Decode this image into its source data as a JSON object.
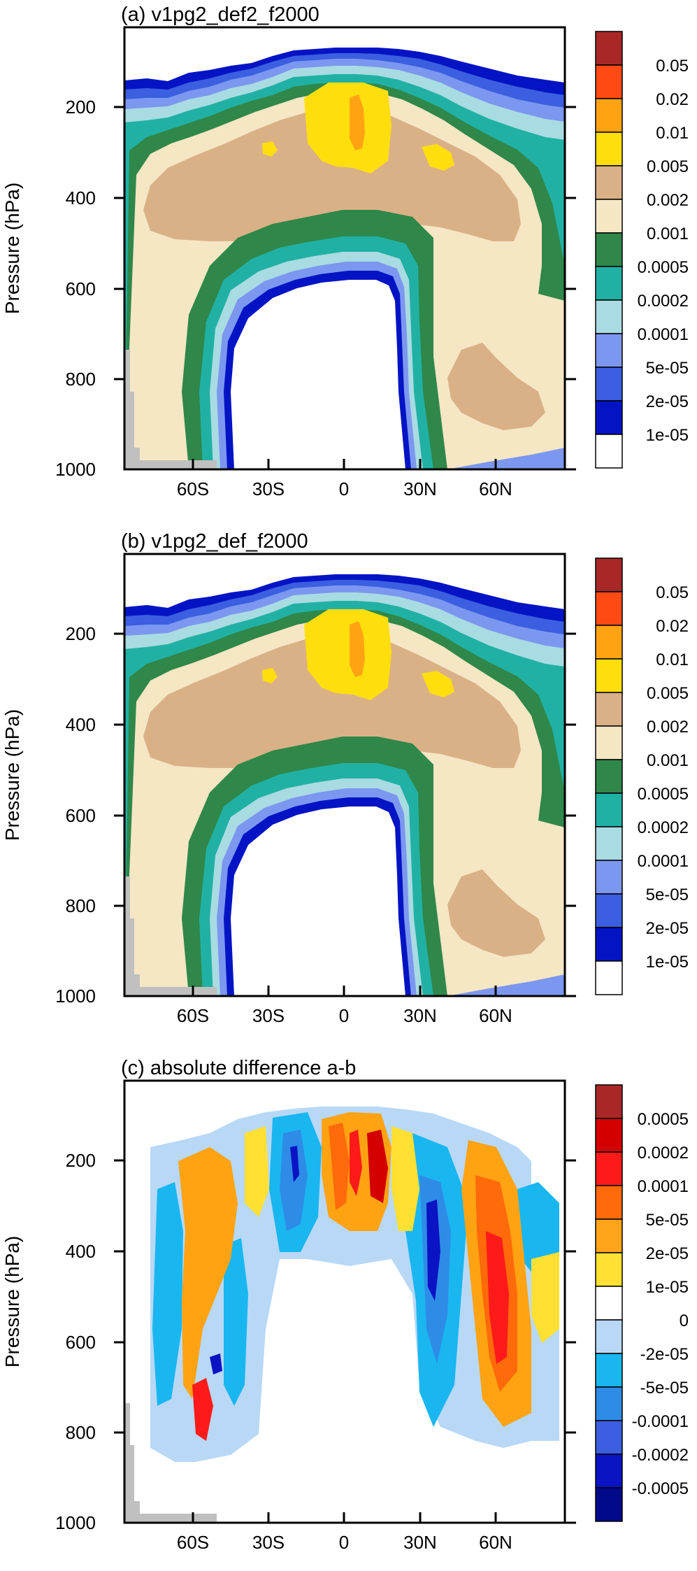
{
  "chart_data": [
    {
      "type": "heatmap",
      "title": "(a) v1pg2_def2_f2000",
      "ylabel": "Pressure (hPa)",
      "x_ticks": [
        "60S",
        "30S",
        "0",
        "30N",
        "60N"
      ],
      "x_tick_values": [
        -60,
        -30,
        0,
        30,
        60
      ],
      "xlim": [
        -90,
        90
      ],
      "y_ticks": [
        "200",
        "400",
        "600",
        "800",
        "1000"
      ],
      "y_tick_values": [
        200,
        400,
        600,
        800,
        1000
      ],
      "ylim": [
        1000,
        10
      ],
      "y_reversed": true,
      "colorbar": {
        "labels": [
          "0.05",
          "0.02",
          "0.01",
          "0.005",
          "0.002",
          "0.001",
          "0.0005",
          "0.0002",
          "0.0001",
          "5e-05",
          "2e-05",
          "1e-05"
        ],
        "colors": [
          "#a82828",
          "#ff4a14",
          "#ffa313",
          "#ffde0e",
          "#dab187",
          "#f5e6c4",
          "#2f8749",
          "#21b1a4",
          "#a9dbe2",
          "#7c97ef",
          "#3b5fe0",
          "#0414c4",
          "#ffffff"
        ]
      }
    },
    {
      "type": "heatmap",
      "title": "(b) v1pg2_def_f2000",
      "ylabel": "Pressure (hPa)",
      "x_ticks": [
        "60S",
        "30S",
        "0",
        "30N",
        "60N"
      ],
      "x_tick_values": [
        -60,
        -30,
        0,
        30,
        60
      ],
      "xlim": [
        -90,
        90
      ],
      "y_ticks": [
        "200",
        "400",
        "600",
        "800",
        "1000"
      ],
      "y_tick_values": [
        200,
        400,
        600,
        800,
        1000
      ],
      "ylim": [
        1000,
        10
      ],
      "y_reversed": true,
      "colorbar": {
        "labels": [
          "0.05",
          "0.02",
          "0.01",
          "0.005",
          "0.002",
          "0.001",
          "0.0005",
          "0.0002",
          "0.0001",
          "5e-05",
          "2e-05",
          "1e-05"
        ],
        "colors": [
          "#a82828",
          "#ff4a14",
          "#ffa313",
          "#ffde0e",
          "#dab187",
          "#f5e6c4",
          "#2f8749",
          "#21b1a4",
          "#a9dbe2",
          "#7c97ef",
          "#3b5fe0",
          "#0414c4",
          "#ffffff"
        ]
      }
    },
    {
      "type": "heatmap",
      "title": "(c) absolute difference a-b",
      "ylabel": "Pressure (hPa)",
      "x_ticks": [
        "60S",
        "30S",
        "0",
        "30N",
        "60N"
      ],
      "x_tick_values": [
        -60,
        -30,
        0,
        30,
        60
      ],
      "xlim": [
        -90,
        90
      ],
      "y_ticks": [
        "200",
        "400",
        "600",
        "800",
        "1000"
      ],
      "y_tick_values": [
        200,
        400,
        600,
        800,
        1000
      ],
      "ylim": [
        1000,
        10
      ],
      "y_reversed": true,
      "colorbar": {
        "labels": [
          "0.0005",
          "0.0002",
          "0.0001",
          "5e-05",
          "2e-05",
          "1e-05",
          "0",
          "-2e-05",
          "-5e-05",
          "-0.0001",
          "-0.0002",
          "-0.0005"
        ],
        "colors": [
          "#a82828",
          "#d40000",
          "#ff1a1a",
          "#ff6a0a",
          "#ffa31a",
          "#ffe033",
          "#ffffff",
          "#b8d8f6",
          "#1ab6f0",
          "#2e8ce6",
          "#3b5fe0",
          "#0a14c4",
          "#000a8a"
        ]
      }
    }
  ]
}
